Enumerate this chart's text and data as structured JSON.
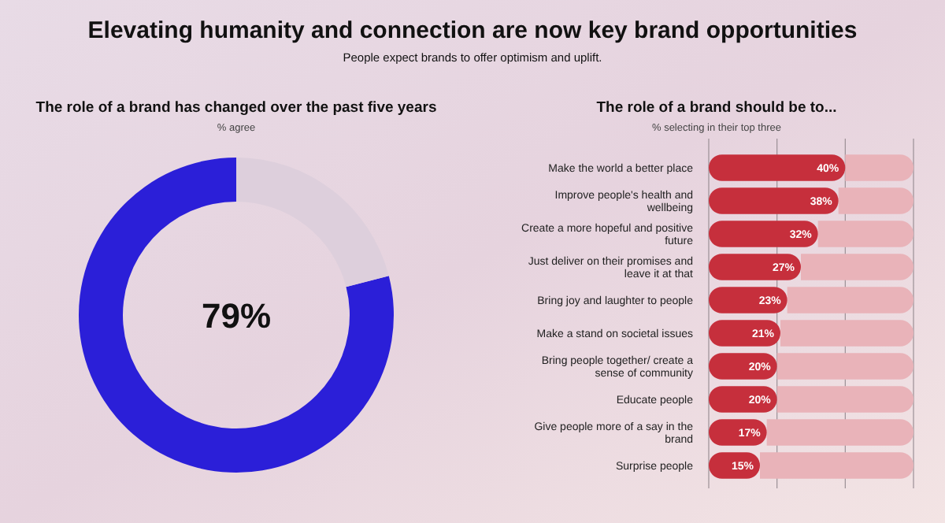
{
  "chart_data": [
    {
      "type": "donut",
      "title": "The role of a brand has changed over the past five years",
      "subtitle": "% agree",
      "annotations": [
        "Elevating humanity and connection are now key brand opportunities",
        "People expect brands to offer optimism and uplift."
      ],
      "categories": [
        null,
        null
      ],
      "values": [
        79,
        21
      ],
      "colors": [
        "#2b1fd8",
        "#ddcfdc"
      ],
      "value_labels": [
        "79%",
        null
      ]
    },
    {
      "type": "bar",
      "orientation": "horizontal",
      "title": "The role of a brand should be to...",
      "subtitle": "% selecting in their top three",
      "categories": [
        "Make the world a better place",
        "Improve people's health and wellbeing",
        "Create a more hopeful and positive future",
        "Just deliver on their promises and leave it at that",
        "Bring joy and laughter to people",
        "Make a stand on societal issues",
        "Bring people together/ create a sense of community",
        "Educate people",
        "Give people more of a say in the brand",
        "Surprise people"
      ],
      "stacked": true,
      "series": [
        {
          "color": "#c62f3c",
          "values": [
            40,
            38,
            32,
            27,
            23,
            21,
            20,
            20,
            17,
            15
          ],
          "value_labels": [
            "40%",
            "38%",
            "32%",
            "27%",
            "23%",
            "21%",
            "20%",
            "20%",
            "17%",
            "15%"
          ]
        },
        {
          "color": "#e9b3b9",
          "values": [
            20,
            22,
            28,
            33,
            37,
            39,
            40,
            40,
            43,
            45
          ]
        }
      ],
      "xlim": [
        0,
        60
      ],
      "xticks": [
        {
          "value": 0,
          "label": null
        },
        {
          "value": 20,
          "label": null
        },
        {
          "value": 40,
          "label": null
        },
        {
          "value": 60,
          "label": null
        }
      ],
      "grid": "x"
    }
  ]
}
